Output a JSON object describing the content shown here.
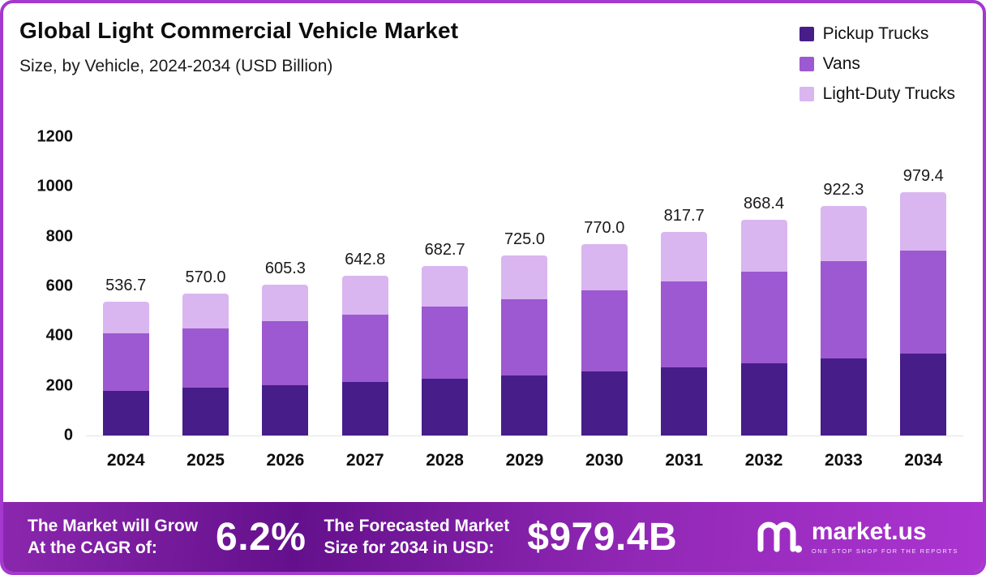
{
  "page": {
    "title": "Global Light Commercial Vehicle Market",
    "subtitle": "Size, by Vehicle, 2024-2034 (USD Billion)"
  },
  "legend": [
    {
      "label": "Pickup Trucks",
      "color": "#471d8a"
    },
    {
      "label": "Vans",
      "color": "#9c59d1"
    },
    {
      "label": "Light-Duty Trucks",
      "color": "#d9b6f0"
    }
  ],
  "chart_data": {
    "type": "bar",
    "stacked": true,
    "title": "Global Light Commercial Vehicle Market",
    "subtitle": "Size, by Vehicle, 2024-2034 (USD Billion)",
    "xlabel": "",
    "ylabel": "USD Billion",
    "ylim": [
      0,
      1200
    ],
    "ytick_step": 200,
    "grid": false,
    "legend_position": "top-right",
    "categories": [
      "2024",
      "2025",
      "2026",
      "2027",
      "2028",
      "2029",
      "2030",
      "2031",
      "2032",
      "2033",
      "2034"
    ],
    "series": [
      {
        "name": "Pickup Trucks",
        "color": "#471d8a",
        "values": [
          180.0,
          191.0,
          202.8,
          215.3,
          228.7,
          242.9,
          258.0,
          273.9,
          290.9,
          309.0,
          328.1
        ]
      },
      {
        "name": "Vans",
        "color": "#9c59d1",
        "values": [
          230.0,
          241.0,
          256.0,
          272.0,
          289.0,
          306.1,
          325.0,
          346.0,
          367.5,
          391.3,
          415.9
        ]
      },
      {
        "name": "Light-Duty Trucks",
        "color": "#d9b6f0",
        "values": [
          126.7,
          138.0,
          146.5,
          155.5,
          165.0,
          176.0,
          187.0,
          197.8,
          210.0,
          222.0,
          235.4
        ]
      }
    ],
    "totals": [
      536.7,
      570.0,
      605.3,
      642.8,
      682.7,
      725.0,
      770.0,
      817.7,
      868.4,
      922.3,
      979.4
    ]
  },
  "footer": {
    "cagr_label_line1": "The Market will Grow",
    "cagr_label_line2": "At the CAGR of:",
    "cagr_value": "6.2%",
    "forecast_label_line1": "The Forecasted Market",
    "forecast_label_line2": "Size for 2034 in USD:",
    "forecast_value": "$979.4B",
    "brand": "market.us",
    "brand_tagline": "ONE STOP SHOP FOR THE REPORTS"
  }
}
